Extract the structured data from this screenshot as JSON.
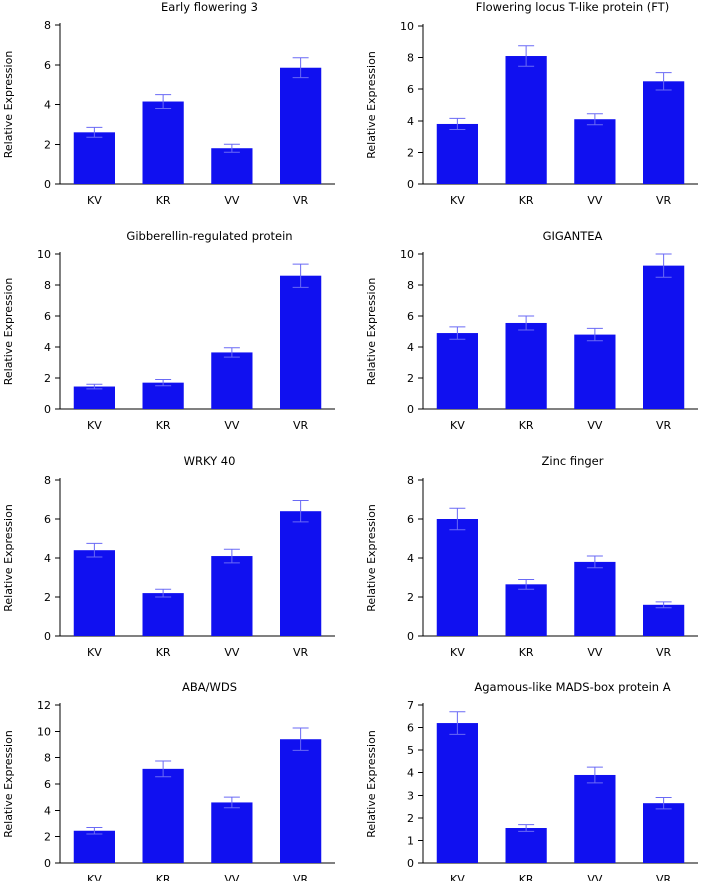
{
  "chart_data": [
    {
      "type": "bar",
      "title": "Early flowering 3",
      "ylabel": "Relative Expression",
      "xlabel": "",
      "categories": [
        "KV",
        "KR",
        "VV",
        "VR"
      ],
      "values": [
        2.6,
        4.15,
        1.8,
        5.85
      ],
      "errors": [
        0.25,
        0.35,
        0.2,
        0.5
      ],
      "ylim": [
        0,
        8
      ],
      "yticks": [
        "0",
        "2",
        "4",
        "6",
        "8"
      ],
      "color": "#1010f0"
    },
    {
      "type": "bar",
      "title": "Flowering locus T-like protein (FT)",
      "ylabel": "Relative Expression",
      "xlabel": "",
      "categories": [
        "KV",
        "KR",
        "VV",
        "VR"
      ],
      "values": [
        3.8,
        8.1,
        4.1,
        6.5
      ],
      "errors": [
        0.35,
        0.65,
        0.35,
        0.55
      ],
      "ylim": [
        0,
        10
      ],
      "yticks": [
        "0",
        "2",
        "4",
        "6",
        "8",
        "10"
      ],
      "color": "#1010f0"
    },
    {
      "type": "bar",
      "title": "Gibberellin-regulated protein",
      "ylabel": "Relative Expression",
      "xlabel": "",
      "categories": [
        "KV",
        "KR",
        "VV",
        "VR"
      ],
      "values": [
        1.45,
        1.7,
        3.65,
        8.6
      ],
      "errors": [
        0.15,
        0.2,
        0.3,
        0.75
      ],
      "ylim": [
        0,
        10
      ],
      "yticks": [
        "0",
        "2",
        "4",
        "6",
        "8",
        "10"
      ],
      "color": "#1010f0"
    },
    {
      "type": "bar",
      "title": "GIGANTEA",
      "ylabel": "Relative Expression",
      "xlabel": "",
      "categories": [
        "KV",
        "KR",
        "VV",
        "VR"
      ],
      "values": [
        4.9,
        5.55,
        4.8,
        9.25
      ],
      "errors": [
        0.4,
        0.45,
        0.4,
        0.75
      ],
      "ylim": [
        0,
        10
      ],
      "yticks": [
        "0",
        "2",
        "4",
        "6",
        "8",
        "10"
      ],
      "color": "#1010f0"
    },
    {
      "type": "bar",
      "title": "WRKY 40",
      "ylabel": "Relative Expression",
      "xlabel": "",
      "categories": [
        "KV",
        "KR",
        "VV",
        "VR"
      ],
      "values": [
        4.4,
        2.2,
        4.1,
        6.4
      ],
      "errors": [
        0.35,
        0.2,
        0.35,
        0.55
      ],
      "ylim": [
        0,
        8
      ],
      "yticks": [
        "0",
        "2",
        "4",
        "6",
        "8"
      ],
      "color": "#1010f0"
    },
    {
      "type": "bar",
      "title": "Zinc finger",
      "ylabel": "Relative Expression",
      "xlabel": "",
      "categories": [
        "KV",
        "KR",
        "VV",
        "VR"
      ],
      "values": [
        6.0,
        2.65,
        3.8,
        1.6
      ],
      "errors": [
        0.55,
        0.25,
        0.3,
        0.15
      ],
      "ylim": [
        0,
        8
      ],
      "yticks": [
        "0",
        "2",
        "4",
        "6",
        "8"
      ],
      "color": "#1010f0"
    },
    {
      "type": "bar",
      "title": "ABA/WDS",
      "ylabel": "Relative Expression",
      "xlabel": "",
      "categories": [
        "KV",
        "KR",
        "VV",
        "VR"
      ],
      "values": [
        2.45,
        7.15,
        4.6,
        9.4
      ],
      "errors": [
        0.25,
        0.6,
        0.4,
        0.85
      ],
      "ylim": [
        0,
        12
      ],
      "yticks": [
        "0",
        "2",
        "4",
        "6",
        "8",
        "10",
        "12"
      ],
      "color": "#1010f0"
    },
    {
      "type": "bar",
      "title": "Agamous-like MADS-box protein A",
      "ylabel": "Relative Expression",
      "xlabel": "",
      "categories": [
        "KV",
        "KR",
        "VV",
        "VR"
      ],
      "values": [
        6.2,
        1.55,
        3.9,
        2.65
      ],
      "errors": [
        0.5,
        0.15,
        0.35,
        0.25
      ],
      "ylim": [
        0,
        7
      ],
      "yticks": [
        "0",
        "1",
        "2",
        "3",
        "4",
        "5",
        "6",
        "7"
      ],
      "color": "#1010f0"
    }
  ]
}
